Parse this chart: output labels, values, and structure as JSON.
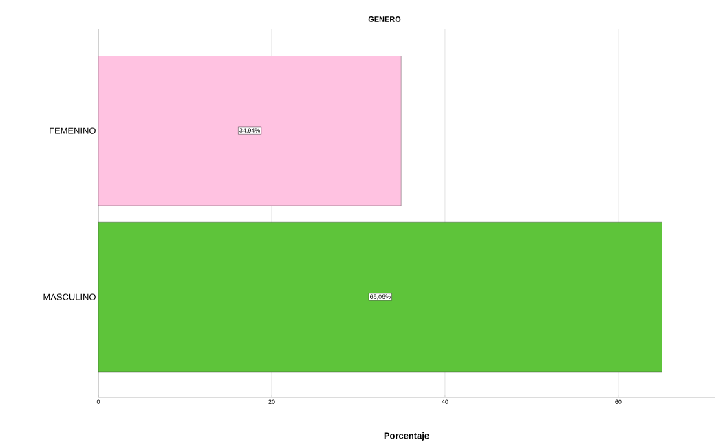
{
  "chart_data": {
    "type": "bar",
    "orientation": "horizontal",
    "title": "GENERO",
    "xlabel": "Porcentaje",
    "categories": [
      "FEMENINO",
      "MASCULINO"
    ],
    "values": [
      34.94,
      65.06
    ],
    "colors": [
      "#ffc2e1",
      "#5ec43a"
    ],
    "value_labels": [
      "34,94%",
      "65,06%"
    ],
    "xlim": [
      0,
      71.2
    ],
    "xticks": [
      0,
      20,
      40,
      60
    ],
    "grid": "x"
  }
}
